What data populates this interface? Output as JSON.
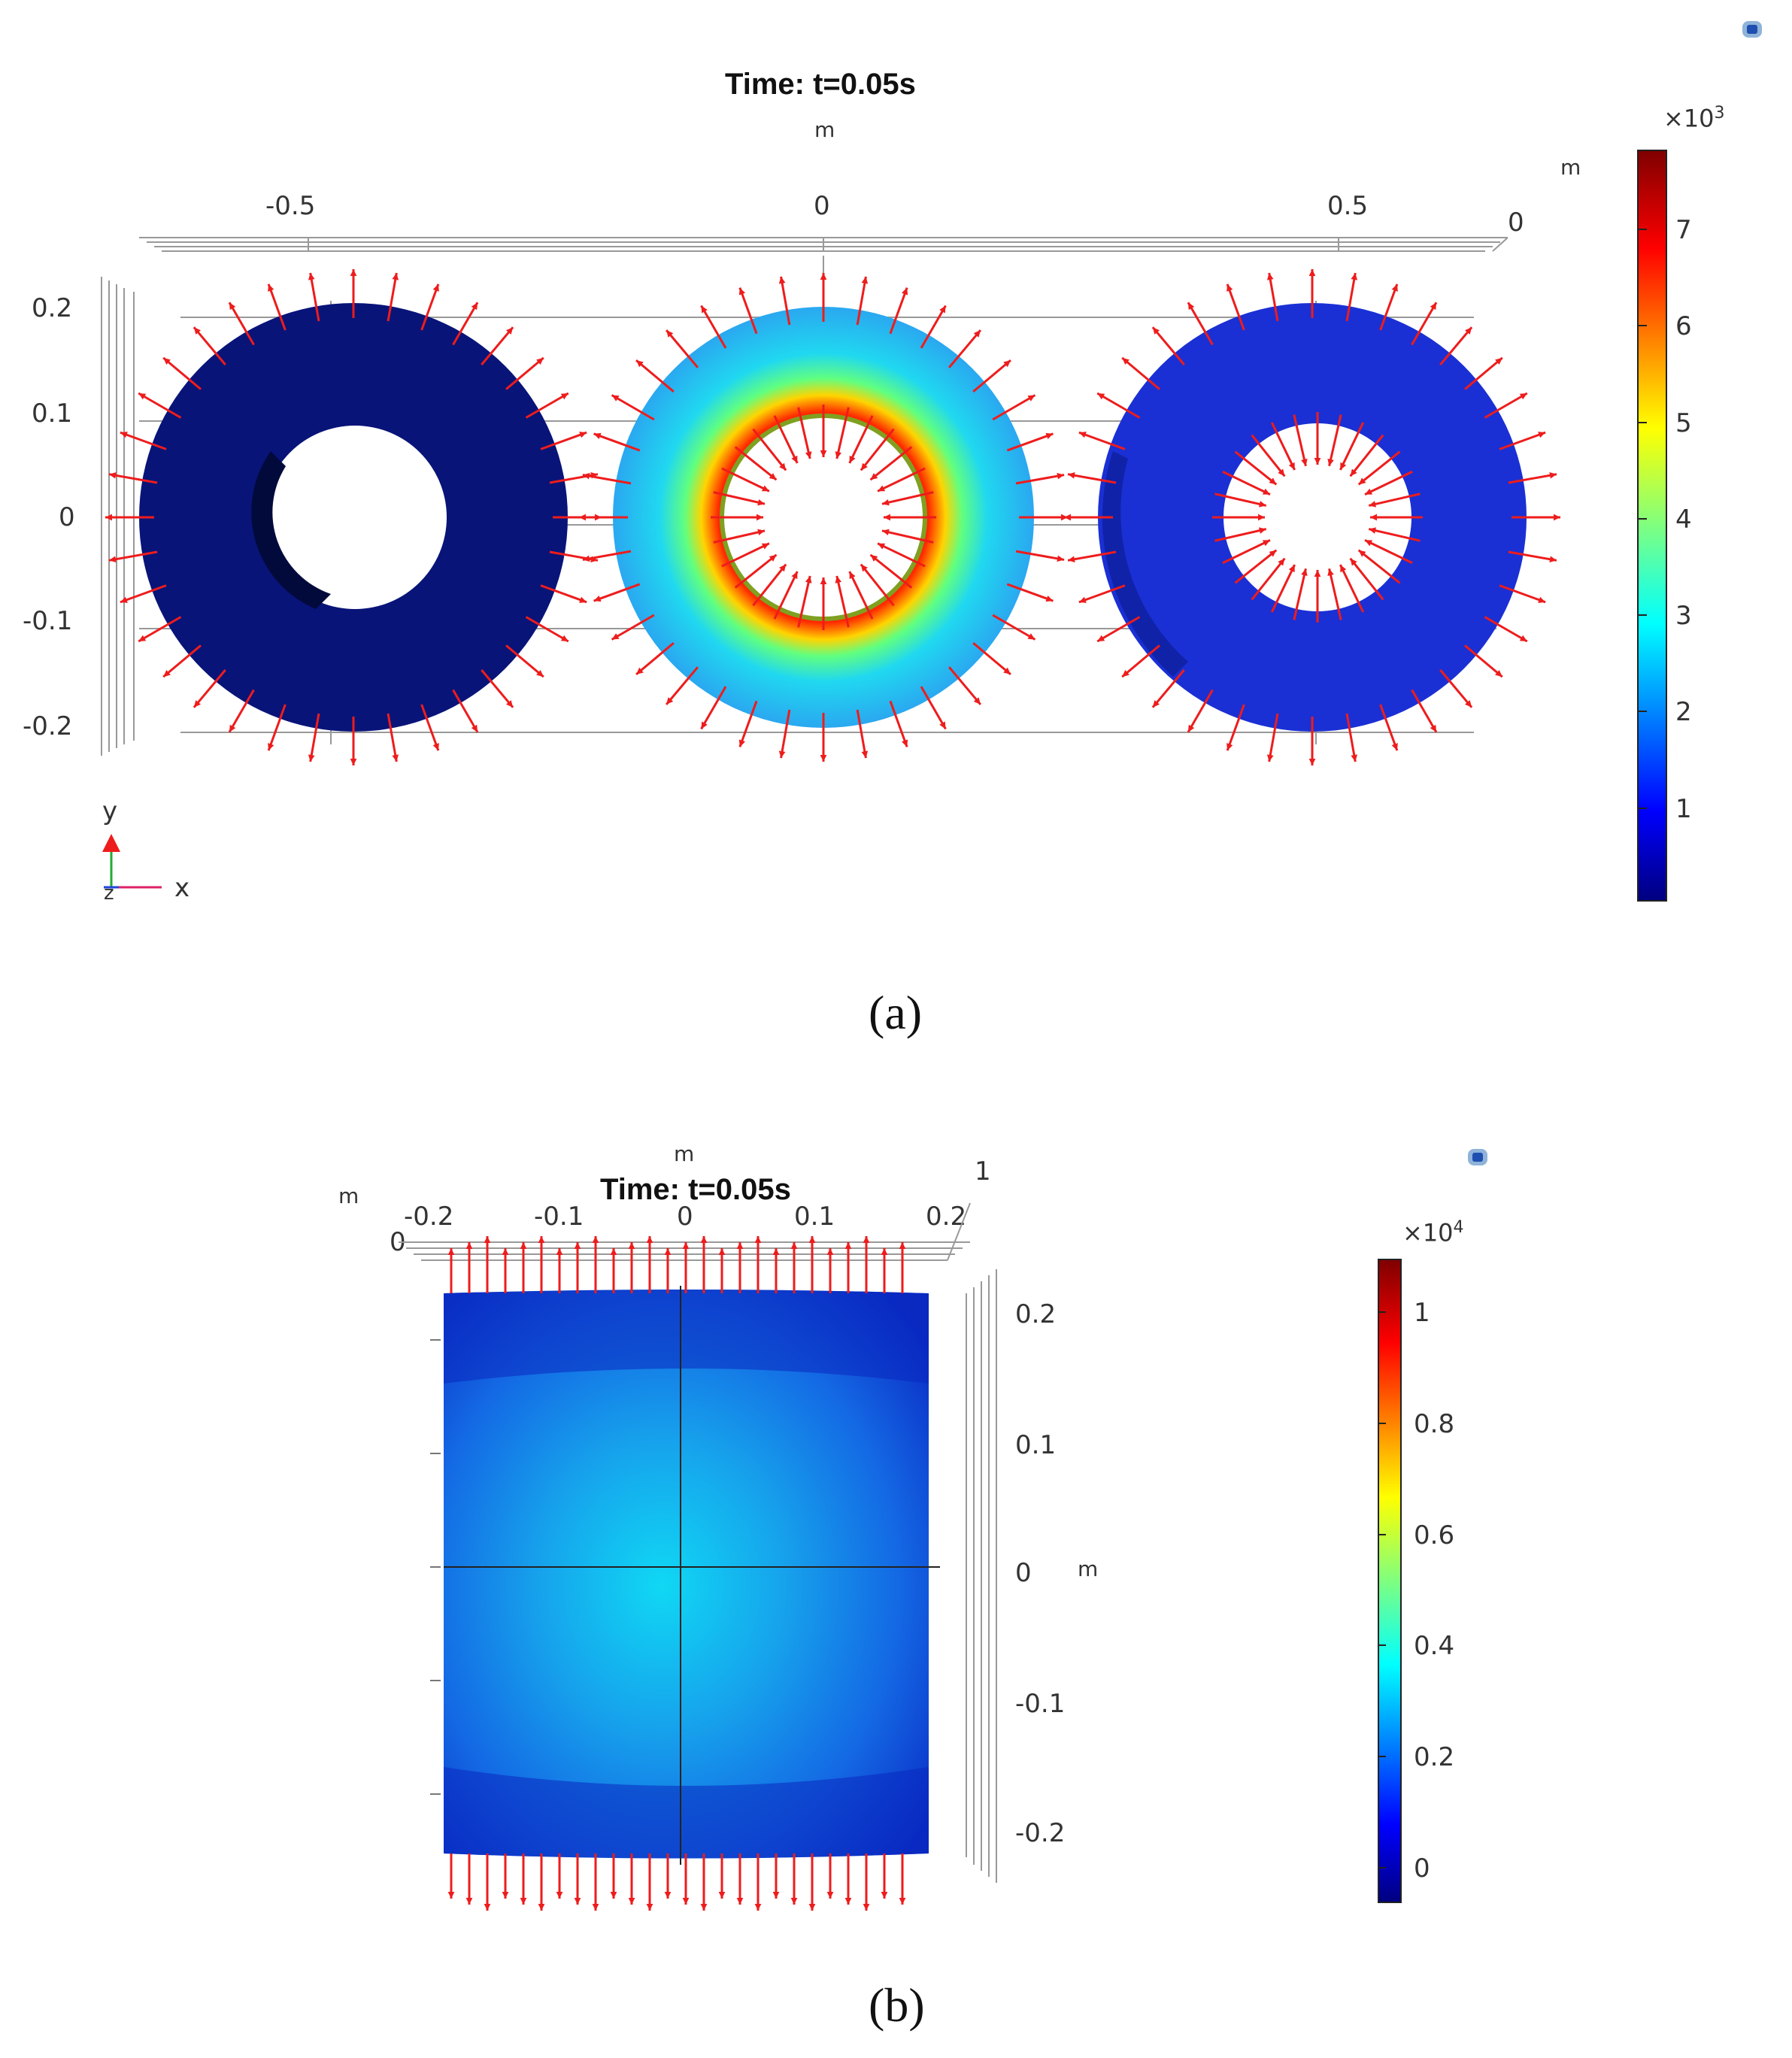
{
  "panel_a": {
    "title": "Time: t=0.05s",
    "axis_unit": "m",
    "colorbar_exponent_base": "×10",
    "colorbar_exponent_power": "3",
    "colorbar_ticks": [
      "7",
      "6",
      "5",
      "4",
      "3",
      "2",
      "1"
    ],
    "x_ticks": [
      "-0.5",
      "0",
      "0.5",
      "0"
    ],
    "y_ticks": [
      "0.2",
      "0.1",
      "0",
      "-0.1",
      "-0.2"
    ],
    "axes_labels": {
      "y": "y",
      "x": "x",
      "z": "z"
    },
    "caption": "(a)"
  },
  "panel_b": {
    "title": "Time: t=0.05s",
    "axis_unit": "m",
    "colorbar_exponent_base": "×10",
    "colorbar_exponent_power": "4",
    "colorbar_ticks": [
      "1",
      "0.8",
      "0.6",
      "0.4",
      "0.2",
      "0"
    ],
    "x_ticks": [
      "-0.2",
      "-0.1",
      "0",
      "0.1",
      "0.2"
    ],
    "corner_labels": {
      "left": "0",
      "right": "1"
    },
    "y_ticks": [
      "0.2",
      "0.1",
      "0",
      "-0.1",
      "-0.2"
    ],
    "caption": "(b)"
  },
  "colors": {
    "arrow": "#ee1c1c",
    "dark_blue": "#0a1a8a",
    "mid_blue": "#1530d8"
  },
  "icons": [
    "comsol-logo-icon",
    "comsol-logo-icon"
  ]
}
